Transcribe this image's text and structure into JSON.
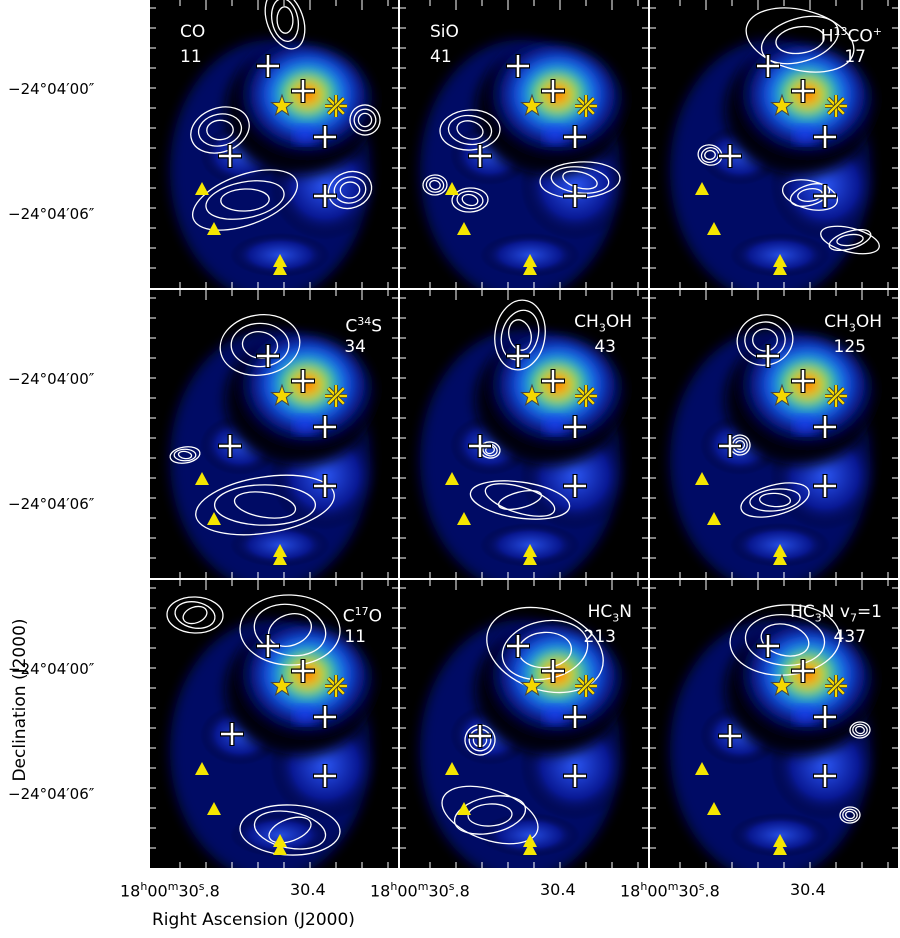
{
  "chart_data": {
    "type": "heatmap",
    "description_of_axes": "continuum background with line contours",
    "xlabel": "Right Ascension (J2000)",
    "ylabel": "Declination (J2000)",
    "x_ticks": [
      "18h00m30.8s",
      "30.4",
      "18h00m30.8s",
      "30.4",
      "18h00m30.8s",
      "30.4"
    ],
    "y_ticks": [
      "-24°04'00\"",
      "-24°04'06\"",
      "-24°04'00\"",
      "-24°04'06\"",
      "-24°04'00\"",
      "-24°04'06\""
    ],
    "panels": [
      {
        "molecule": "CO",
        "level": "11",
        "label_side": "left"
      },
      {
        "molecule": "SiO",
        "level": "41",
        "label_side": "left"
      },
      {
        "molecule": "H13CO+",
        "level": "17",
        "label_side": "right"
      },
      {
        "molecule": "C34S",
        "level": "34",
        "label_side": "right"
      },
      {
        "molecule": "CH3OH",
        "level": "43",
        "label_side": "right"
      },
      {
        "molecule": "CH3OH",
        "level": "125",
        "label_side": "right"
      },
      {
        "molecule": "C17O",
        "level": "11",
        "label_side": "right"
      },
      {
        "molecule": "HC3N",
        "level": "213",
        "label_side": "right"
      },
      {
        "molecule": "HC3N v7=1",
        "level": "437",
        "label_side": "right"
      }
    ],
    "markers": {
      "stars": 2,
      "crosses": 5,
      "triangles": 3,
      "star_color": "#f5d800",
      "triangle_color": "#f5e600"
    }
  },
  "text": {
    "ytick_top": "−24°04′00″",
    "ytick_bottom": "−24°04′06″",
    "xtick_full": "18",
    "xtick_30_4": "30.4",
    "ylabel": "Declination (J2000)",
    "xlabel": "Right Ascension (J2000)"
  }
}
